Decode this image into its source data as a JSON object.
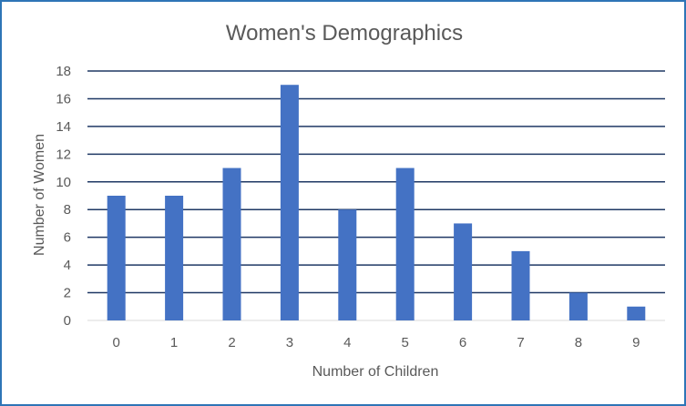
{
  "chart_data": {
    "type": "bar",
    "title": "Women's Demographics",
    "xlabel": "Number of Children",
    "ylabel": "Number of Women",
    "categories": [
      "0",
      "1",
      "2",
      "3",
      "4",
      "5",
      "6",
      "7",
      "8",
      "9"
    ],
    "values": [
      9,
      9,
      11,
      17,
      8,
      11,
      7,
      5,
      2,
      1
    ],
    "ylim": [
      0,
      18
    ],
    "yticks": [
      "0",
      "2",
      "4",
      "6",
      "8",
      "10",
      "12",
      "14",
      "16",
      "18"
    ],
    "grid": true,
    "legend": "none",
    "colors": {
      "bar": "#4472c4",
      "gridline": "#1f3864",
      "text": "#595959",
      "frame": "#2e75b6"
    }
  }
}
